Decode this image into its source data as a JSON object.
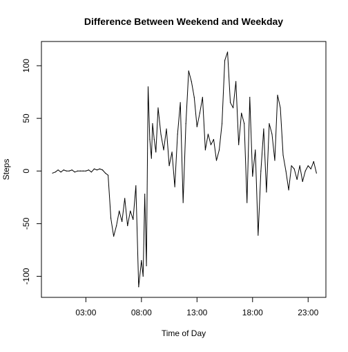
{
  "chart_data": {
    "type": "line",
    "title": "Difference Between Weekend and Weekday",
    "xlabel": "Time of Day",
    "ylabel": "Steps",
    "x_unit": "hours",
    "xlim": [
      -1.0,
      24.6
    ],
    "ylim": [
      -120,
      123
    ],
    "x_ticks": [
      {
        "value": 3,
        "label": "03:00"
      },
      {
        "value": 8,
        "label": "08:00"
      },
      {
        "value": 13,
        "label": "13:00"
      },
      {
        "value": 18,
        "label": "18:00"
      },
      {
        "value": 23,
        "label": "23:00"
      }
    ],
    "y_ticks": [
      {
        "value": -100,
        "label": "-100"
      },
      {
        "value": -50,
        "label": "-50"
      },
      {
        "value": 0,
        "label": "0"
      },
      {
        "value": 50,
        "label": "50"
      },
      {
        "value": 100,
        "label": "100"
      }
    ],
    "grid": false,
    "legend": "none",
    "line_color": "#000000",
    "series": [
      {
        "x": [
          0.0,
          0.25,
          0.5,
          0.75,
          1.0,
          1.25,
          1.5,
          1.75,
          2.0,
          2.25,
          2.5,
          2.75,
          3.0,
          3.25,
          3.5,
          3.75,
          4.0,
          4.25,
          4.5,
          4.75,
          5.0,
          5.25,
          5.5,
          5.75,
          6.0,
          6.25,
          6.5,
          6.75,
          7.0,
          7.25,
          7.5,
          7.75,
          8.0,
          8.15,
          8.3,
          8.45,
          8.6,
          8.75,
          8.9,
          9.0,
          9.15,
          9.3,
          9.5,
          9.75,
          10.0,
          10.25,
          10.5,
          10.75,
          11.0,
          11.25,
          11.5,
          11.75,
          12.0,
          12.25,
          12.5,
          12.75,
          13.0,
          13.25,
          13.5,
          13.75,
          14.0,
          14.25,
          14.5,
          14.75,
          15.0,
          15.25,
          15.5,
          15.75,
          16.0,
          16.25,
          16.5,
          16.75,
          17.0,
          17.25,
          17.5,
          17.75,
          18.0,
          18.25,
          18.5,
          18.75,
          19.0,
          19.25,
          19.5,
          19.75,
          20.0,
          20.25,
          20.5,
          20.75,
          21.0,
          21.25,
          21.5,
          21.75,
          22.0,
          22.25,
          22.5,
          22.75,
          23.0,
          23.25,
          23.5,
          23.75
        ],
        "y": [
          -2,
          -1,
          1,
          -1,
          1,
          0,
          0,
          1,
          -1,
          0,
          0,
          0,
          0,
          1,
          -1,
          2,
          1,
          2,
          1,
          -2,
          -4,
          -45,
          -62,
          -52,
          -38,
          -48,
          -26,
          -52,
          -38,
          -46,
          -14,
          -110,
          -85,
          -100,
          -22,
          -90,
          80,
          30,
          12,
          45,
          30,
          18,
          60,
          35,
          20,
          40,
          5,
          18,
          -15,
          35,
          65,
          -30,
          45,
          95,
          85,
          70,
          42,
          55,
          70,
          20,
          35,
          25,
          30,
          10,
          20,
          45,
          105,
          113,
          65,
          60,
          85,
          25,
          55,
          45,
          -30,
          70,
          -5,
          20,
          -61,
          0,
          40,
          -20,
          45,
          35,
          10,
          72,
          60,
          15,
          0,
          -18,
          5,
          2,
          -8,
          5,
          -10,
          0,
          5,
          2,
          9,
          -2
        ]
      }
    ]
  }
}
